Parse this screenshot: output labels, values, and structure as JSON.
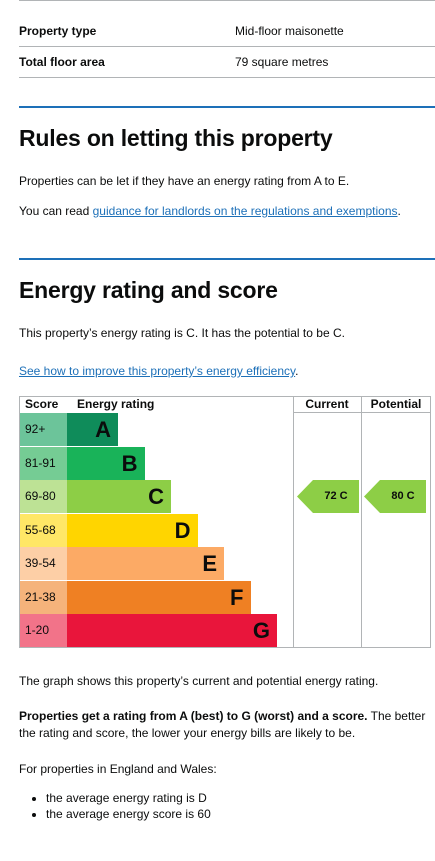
{
  "summary": {
    "rows": [
      {
        "label": "Property type",
        "value": "Mid-floor maisonette"
      },
      {
        "label": "Total floor area",
        "value": "79 square metres"
      }
    ]
  },
  "letting": {
    "heading": "Rules on letting this property",
    "text": "Properties can be let if they have an energy rating from A to E.",
    "read_prefix": "You can read ",
    "read_link": "guidance for landlords on the regulations and exemptions",
    "read_suffix": "."
  },
  "energy": {
    "heading": "Energy rating and score",
    "text": "This property’s energy rating is C. It has the potential to be C.",
    "improve_link": "See how to improve this property’s energy efficiency",
    "improve_suffix": "."
  },
  "chart_data": {
    "type": "bar",
    "headers": {
      "score": "Score",
      "rating": "Energy rating",
      "current": "Current",
      "potential": "Potential"
    },
    "bands": [
      {
        "score": "92+",
        "letter": "A",
        "color": "#0f8c5a",
        "score_bg": "#6cc49a"
      },
      {
        "score": "81-91",
        "letter": "B",
        "color": "#19b359",
        "score_bg": "#75cc94"
      },
      {
        "score": "69-80",
        "letter": "C",
        "color": "#8dce46",
        "score_bg": "#bde295"
      },
      {
        "score": "55-68",
        "letter": "D",
        "color": "#ffd500",
        "score_bg": "#ffe766"
      },
      {
        "score": "39-54",
        "letter": "E",
        "color": "#fcaa65",
        "score_bg": "#fdcfa6"
      },
      {
        "score": "21-38",
        "letter": "F",
        "color": "#ef8023",
        "score_bg": "#f5b37b"
      },
      {
        "score": "1-20",
        "letter": "G",
        "color": "#e9153b",
        "score_bg": "#f27389"
      }
    ],
    "current": {
      "score": 72,
      "letter": "C",
      "label": "72 C"
    },
    "potential": {
      "score": 80,
      "letter": "C",
      "label": "80 C"
    }
  },
  "after_chart": {
    "graph_text": "The graph shows this property’s current and potential energy rating.",
    "bold_text": "Properties get a rating from A (best) to G (worst) and a score.",
    "rest_text": " The better the rating and score, the lower your energy bills are likely to be.",
    "england_text": "For properties in England and Wales:",
    "bullets": [
      "the average energy rating is D",
      "the average energy score is 60"
    ]
  }
}
